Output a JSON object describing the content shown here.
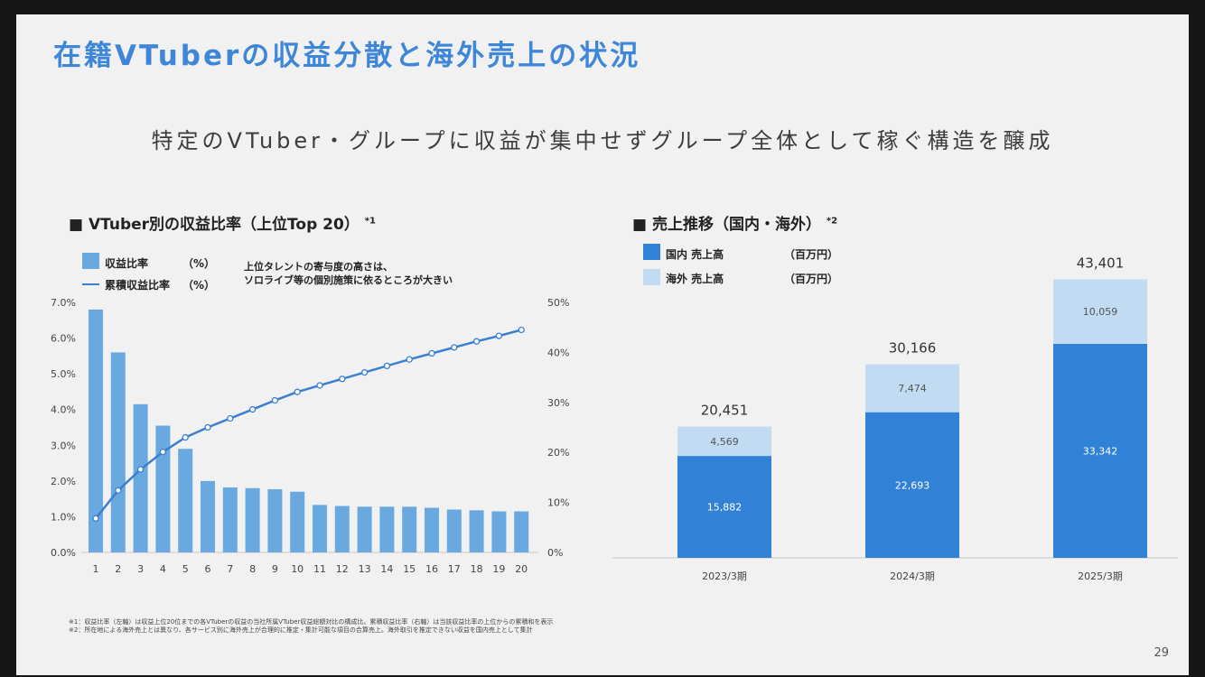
{
  "title": "在籍VTuberの収益分散と海外売上の状況",
  "subtitle": "特定のVTuber・グループに収益が集中せずグループ全体として稼ぐ構造を醸成",
  "left_section": {
    "title": "■ VTuber別の収益比率（上位Top 20）",
    "note_mark": "*1",
    "legend": [
      {
        "label": "収益比率",
        "unit": "（%）"
      },
      {
        "label": "累積収益比率",
        "unit": "（%）"
      }
    ],
    "annotation_line1": "上位タレントの寄与度の高さは、",
    "annotation_line2": "ソロライブ等の個別施策に依るところが大きい"
  },
  "right_section": {
    "title": "■ 売上推移（国内・海外）",
    "note_mark": "*2",
    "legend": [
      {
        "label": "国内 売上高",
        "unit": "（百万円）"
      },
      {
        "label": "海外 売上高",
        "unit": "（百万円）"
      }
    ]
  },
  "footnotes": [
    "※1：収益比率（左軸）は収益上位20位までの各VTuberの収益の当社所属VTuber収益総額対比の構成比。累積収益比率（右軸）は当該収益比率の上位からの累積和を表示",
    "※2：所在地による海外売上とは異なり、各サービス別に海外売上が合理的に推定・集計可能な項目の合算売上。海外取引を推定できない収益を国内売上として集計"
  ],
  "page_number": "29",
  "chart_data": [
    {
      "type": "bar",
      "categories": [
        "1",
        "2",
        "3",
        "4",
        "5",
        "6",
        "7",
        "8",
        "9",
        "10",
        "11",
        "12",
        "13",
        "14",
        "15",
        "16",
        "17",
        "18",
        "19",
        "20"
      ],
      "series": [
        {
          "name": "収益比率",
          "axis": "left",
          "type": "bar",
          "color": "#6aa8e0",
          "values": [
            6.8,
            5.6,
            4.15,
            3.55,
            2.9,
            2.0,
            1.82,
            1.8,
            1.77,
            1.7,
            1.33,
            1.3,
            1.28,
            1.28,
            1.28,
            1.25,
            1.2,
            1.18,
            1.15,
            1.15
          ]
        },
        {
          "name": "累積収益比率",
          "axis": "right",
          "type": "line",
          "color": "#3a7fd0",
          "values": [
            6.8,
            12.4,
            16.6,
            20.1,
            23.0,
            25.0,
            26.8,
            28.6,
            30.4,
            32.1,
            33.4,
            34.7,
            36.0,
            37.3,
            38.6,
            39.8,
            41.0,
            42.2,
            43.3,
            44.5
          ]
        }
      ],
      "y_left": {
        "ylim": [
          0,
          7
        ],
        "ticks": [
          "0.0%",
          "1.0%",
          "2.0%",
          "3.0%",
          "4.0%",
          "5.0%",
          "6.0%",
          "7.0%"
        ]
      },
      "y_right": {
        "ylim": [
          0,
          50
        ],
        "ticks": [
          "0%",
          "10%",
          "20%",
          "30%",
          "40%",
          "50%"
        ]
      },
      "grid": false
    },
    {
      "type": "bar",
      "stacked": true,
      "categories": [
        "2023/3期",
        "2024/3期",
        "2025/3期"
      ],
      "series": [
        {
          "name": "国内 売上高",
          "color": "#3182d6",
          "values": [
            15882,
            22693,
            33342
          ],
          "labels": [
            "15,882",
            "22,693",
            "33,342"
          ]
        },
        {
          "name": "海外 売上高",
          "color": "#c1dbf3",
          "values": [
            4569,
            7474,
            10059
          ],
          "labels": [
            "4,569",
            "7,474",
            "10,059"
          ]
        }
      ],
      "totals": [
        "20,451",
        "30,166",
        "43,401"
      ],
      "ylim": [
        0,
        46000
      ],
      "grid": false
    }
  ]
}
